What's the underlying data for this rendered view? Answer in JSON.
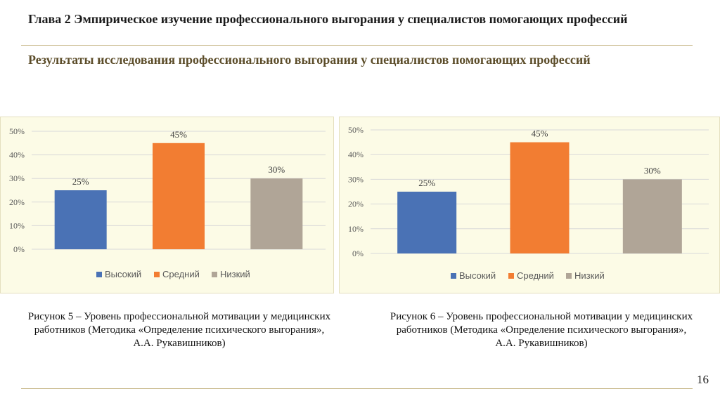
{
  "header": {
    "chapter_title": "Глава 2 Эмпирическое изучение профессионального выгорания у специалистов помогающих профессий",
    "subtitle": "Результаты исследования профессионального выгорания у специалистов помогающих профессий"
  },
  "colors": {
    "high": "#4a72b5",
    "medium": "#f27d32",
    "low": "#b0a597",
    "subtitle": "#5c4d2a",
    "rule": "#c8b88a",
    "panel_bg": "#fcfbe6"
  },
  "chart_data": [
    {
      "type": "bar",
      "categories": [
        "Высокий",
        "Средний",
        "Низкий"
      ],
      "values": [
        25,
        45,
        30
      ],
      "value_labels": [
        "25%",
        "45%",
        "30%"
      ],
      "ylim": [
        0,
        50
      ],
      "yticks": [
        "0%",
        "10%",
        "20%",
        "30%",
        "40%",
        "50%"
      ],
      "legend": [
        "Высокий",
        "Средний",
        "Низкий"
      ],
      "legend_position": "bottom",
      "grid": true
    },
    {
      "type": "bar",
      "categories": [
        "Высокий",
        "Средний",
        "Низкий"
      ],
      "values": [
        25,
        45,
        30
      ],
      "value_labels": [
        "25%",
        "45%",
        "30%"
      ],
      "ylim": [
        0,
        50
      ],
      "yticks": [
        "0%",
        "10%",
        "20%",
        "30%",
        "40%",
        "50%"
      ],
      "legend": [
        "Высокий",
        "Средний",
        "Низкий"
      ],
      "legend_position": "bottom",
      "grid": true
    }
  ],
  "captions": [
    {
      "line1": "Рисунок 5 – Уровень профессиональной мотивации у медицинских",
      "line2": "работников (Методика «Определение психического выгорания»,",
      "line3": "А.А. Рукавишников)"
    },
    {
      "line1": "Рисунок 6 – Уровень профессиональной мотивации у медицинских",
      "line2": "работников (Методика «Определение психического выгорания»,",
      "line3": "А.А. Рукавишников)"
    }
  ],
  "page_number": "16"
}
